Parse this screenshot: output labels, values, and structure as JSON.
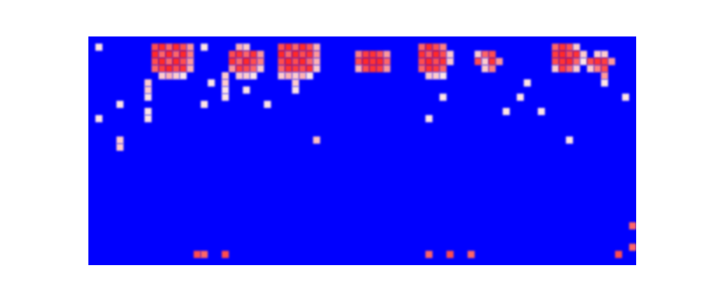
{
  "chart_data": {
    "type": "heatmap",
    "tick_labels": false,
    "grid": false,
    "xlim": [
      0,
      78
    ],
    "ylim": [
      0,
      32
    ],
    "zlim": [
      0,
      1
    ],
    "cells": [
      [
        1,
        30,
        0.55
      ],
      [
        9,
        30,
        0.85
      ],
      [
        10,
        30,
        0.92
      ],
      [
        11,
        30,
        0.8
      ],
      [
        12,
        30,
        0.92
      ],
      [
        13,
        30,
        0.85
      ],
      [
        14,
        30,
        0.7
      ],
      [
        9,
        29,
        0.92
      ],
      [
        10,
        29,
        0.8
      ],
      [
        11,
        29,
        0.92
      ],
      [
        12,
        29,
        0.8
      ],
      [
        13,
        29,
        0.92
      ],
      [
        14,
        29,
        0.75
      ],
      [
        9,
        28,
        0.85
      ],
      [
        10,
        28,
        0.92
      ],
      [
        11,
        28,
        0.8
      ],
      [
        12,
        28,
        0.92
      ],
      [
        13,
        28,
        0.85
      ],
      [
        14,
        28,
        0.7
      ],
      [
        9,
        27,
        0.8
      ],
      [
        10,
        27,
        0.88
      ],
      [
        11,
        27,
        0.92
      ],
      [
        12,
        27,
        0.85
      ],
      [
        13,
        27,
        0.9
      ],
      [
        14,
        27,
        0.65
      ],
      [
        10,
        26,
        0.6
      ],
      [
        11,
        26,
        0.65
      ],
      [
        12,
        26,
        0.6
      ],
      [
        13,
        26,
        0.55
      ],
      [
        8,
        25,
        0.6
      ],
      [
        8,
        24,
        0.6
      ],
      [
        8,
        23,
        0.55
      ],
      [
        8,
        21,
        0.55
      ],
      [
        8,
        20,
        0.55
      ],
      [
        4,
        22,
        0.55
      ],
      [
        1,
        20,
        0.55
      ],
      [
        4,
        17,
        0.6
      ],
      [
        4,
        16,
        0.6
      ],
      [
        16,
        30,
        0.55
      ],
      [
        16,
        22,
        0.55
      ],
      [
        17,
        25,
        0.55
      ],
      [
        19,
        26,
        0.6
      ],
      [
        19,
        25,
        0.6
      ],
      [
        19,
        24,
        0.55
      ],
      [
        19,
        23,
        0.55
      ],
      [
        21,
        30,
        0.65
      ],
      [
        22,
        30,
        0.6
      ],
      [
        20,
        29,
        0.85
      ],
      [
        21,
        29,
        0.9
      ],
      [
        22,
        29,
        0.8
      ],
      [
        23,
        29,
        0.9
      ],
      [
        24,
        29,
        0.7
      ],
      [
        20,
        28,
        0.9
      ],
      [
        21,
        28,
        0.8
      ],
      [
        22,
        28,
        0.92
      ],
      [
        23,
        28,
        0.85
      ],
      [
        24,
        28,
        0.75
      ],
      [
        20,
        27,
        0.7
      ],
      [
        21,
        27,
        0.88
      ],
      [
        22,
        27,
        0.85
      ],
      [
        23,
        27,
        0.8
      ],
      [
        24,
        27,
        0.6
      ],
      [
        21,
        26,
        0.6
      ],
      [
        22,
        26,
        0.6
      ],
      [
        23,
        26,
        0.55
      ],
      [
        22,
        24,
        0.55
      ],
      [
        25,
        22,
        0.55
      ],
      [
        27,
        30,
        0.85
      ],
      [
        28,
        30,
        0.92
      ],
      [
        29,
        30,
        0.8
      ],
      [
        30,
        30,
        0.92
      ],
      [
        31,
        30,
        0.85
      ],
      [
        32,
        30,
        0.65
      ],
      [
        27,
        29,
        0.92
      ],
      [
        28,
        29,
        0.8
      ],
      [
        29,
        29,
        0.92
      ],
      [
        30,
        29,
        0.85
      ],
      [
        31,
        29,
        0.9
      ],
      [
        32,
        29,
        0.7
      ],
      [
        27,
        28,
        0.85
      ],
      [
        28,
        28,
        0.92
      ],
      [
        29,
        28,
        0.85
      ],
      [
        30,
        28,
        0.92
      ],
      [
        31,
        28,
        0.8
      ],
      [
        32,
        28,
        0.65
      ],
      [
        27,
        27,
        0.8
      ],
      [
        28,
        27,
        0.9
      ],
      [
        29,
        27,
        0.88
      ],
      [
        30,
        27,
        0.85
      ],
      [
        31,
        27,
        0.9
      ],
      [
        32,
        27,
        0.6
      ],
      [
        27,
        26,
        0.6
      ],
      [
        28,
        26,
        0.65
      ],
      [
        29,
        26,
        0.6
      ],
      [
        30,
        26,
        0.65
      ],
      [
        31,
        26,
        0.55
      ],
      [
        29,
        25,
        0.6
      ],
      [
        29,
        24,
        0.55
      ],
      [
        32,
        17,
        0.62
      ],
      [
        38,
        29,
        0.75
      ],
      [
        39,
        29,
        0.88
      ],
      [
        40,
        29,
        0.9
      ],
      [
        41,
        29,
        0.85
      ],
      [
        42,
        29,
        0.7
      ],
      [
        38,
        28,
        0.85
      ],
      [
        39,
        28,
        0.92
      ],
      [
        40,
        28,
        0.9
      ],
      [
        41,
        28,
        0.92
      ],
      [
        42,
        28,
        0.8
      ],
      [
        38,
        27,
        0.65
      ],
      [
        39,
        27,
        0.85
      ],
      [
        40,
        27,
        0.9
      ],
      [
        41,
        27,
        0.88
      ],
      [
        42,
        27,
        0.7
      ],
      [
        47,
        30,
        0.8
      ],
      [
        48,
        30,
        0.92
      ],
      [
        49,
        30,
        0.85
      ],
      [
        50,
        30,
        0.75
      ],
      [
        47,
        29,
        0.9
      ],
      [
        48,
        29,
        0.82
      ],
      [
        49,
        29,
        0.92
      ],
      [
        50,
        29,
        0.85
      ],
      [
        51,
        29,
        0.6
      ],
      [
        47,
        28,
        0.85
      ],
      [
        48,
        28,
        0.92
      ],
      [
        49,
        28,
        0.85
      ],
      [
        50,
        28,
        0.9
      ],
      [
        51,
        28,
        0.6
      ],
      [
        47,
        27,
        0.8
      ],
      [
        48,
        27,
        0.9
      ],
      [
        49,
        27,
        0.88
      ],
      [
        50,
        27,
        0.8
      ],
      [
        48,
        26,
        0.6
      ],
      [
        49,
        26,
        0.6
      ],
      [
        50,
        26,
        0.55
      ],
      [
        50,
        23,
        0.55
      ],
      [
        48,
        20,
        0.55
      ],
      [
        55,
        29,
        0.6
      ],
      [
        56,
        29,
        0.8
      ],
      [
        57,
        29,
        0.85
      ],
      [
        55,
        28,
        0.85
      ],
      [
        56,
        28,
        0.6
      ],
      [
        57,
        28,
        0.9
      ],
      [
        58,
        28,
        0.7
      ],
      [
        56,
        27,
        0.6
      ],
      [
        57,
        27,
        0.75
      ],
      [
        59,
        21,
        0.55
      ],
      [
        61,
        23,
        0.55
      ],
      [
        62,
        25,
        0.55
      ],
      [
        64,
        21,
        0.55
      ],
      [
        66,
        30,
        0.8
      ],
      [
        67,
        30,
        0.9
      ],
      [
        68,
        30,
        0.85
      ],
      [
        69,
        30,
        0.6
      ],
      [
        66,
        29,
        0.88
      ],
      [
        67,
        29,
        0.92
      ],
      [
        68,
        29,
        0.85
      ],
      [
        69,
        29,
        0.9
      ],
      [
        70,
        29,
        0.6
      ],
      [
        66,
        28,
        0.85
      ],
      [
        67,
        28,
        0.9
      ],
      [
        68,
        28,
        0.92
      ],
      [
        69,
        28,
        0.8
      ],
      [
        70,
        28,
        0.55
      ],
      [
        66,
        27,
        0.6
      ],
      [
        67,
        27,
        0.88
      ],
      [
        68,
        27,
        0.8
      ],
      [
        69,
        27,
        0.6
      ],
      [
        72,
        29,
        0.6
      ],
      [
        73,
        29,
        0.6
      ],
      [
        71,
        28,
        0.85
      ],
      [
        72,
        28,
        0.9
      ],
      [
        73,
        28,
        0.88
      ],
      [
        74,
        28,
        0.7
      ],
      [
        71,
        27,
        0.6
      ],
      [
        72,
        27,
        0.75
      ],
      [
        73,
        27,
        0.85
      ],
      [
        73,
        26,
        0.7
      ],
      [
        73,
        25,
        0.55
      ],
      [
        68,
        17,
        0.55
      ],
      [
        76,
        23,
        0.55
      ],
      [
        15,
        1,
        0.85
      ],
      [
        16,
        1,
        0.8
      ],
      [
        19,
        1,
        0.85
      ],
      [
        48,
        1,
        0.8
      ],
      [
        51,
        1,
        0.85
      ],
      [
        54,
        1,
        0.8
      ],
      [
        75,
        1,
        0.85
      ],
      [
        77,
        5,
        0.8
      ],
      [
        77,
        2,
        0.8
      ]
    ]
  }
}
